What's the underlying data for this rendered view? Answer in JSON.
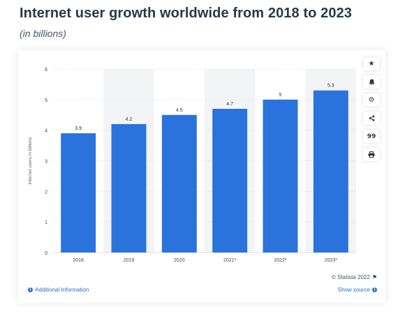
{
  "header": {
    "title": "Internet user growth worldwide from 2018 to 2023",
    "subtitle": "(in billions)"
  },
  "colors": {
    "bar": "#2a72dc",
    "band": "#f3f4f6",
    "grid": "#dddddd",
    "axis_text": "#444444"
  },
  "side_icons": [
    {
      "name": "star-icon",
      "glyph": "★"
    },
    {
      "name": "bell-icon",
      "glyph": "🔔"
    },
    {
      "name": "gear-icon",
      "glyph": "⚙"
    },
    {
      "name": "share-icon",
      "glyph": "<"
    },
    {
      "name": "quote-icon",
      "glyph": "99"
    },
    {
      "name": "print-icon",
      "glyph": "⎙"
    }
  ],
  "footer": {
    "additional_info": "Additional Information",
    "show_source": "Show source",
    "copyright": "© Statista 2022"
  },
  "chart_data": {
    "type": "bar",
    "categories": [
      "2018",
      "2019",
      "2020",
      "2021*",
      "2022*",
      "2023*"
    ],
    "values": [
      3.9,
      4.2,
      4.5,
      4.7,
      5,
      5.3
    ],
    "value_labels": [
      "3.9",
      "4.2",
      "4.5",
      "4.7",
      "5",
      "5.3"
    ],
    "title": "",
    "xlabel": "",
    "ylabel": "Internet users in billions",
    "ylim": [
      0,
      6
    ],
    "yticks": [
      0,
      1,
      2,
      3,
      4,
      5,
      6
    ],
    "grid": true,
    "shaded_categories": [
      "2019",
      "2021*",
      "2023*"
    ]
  }
}
